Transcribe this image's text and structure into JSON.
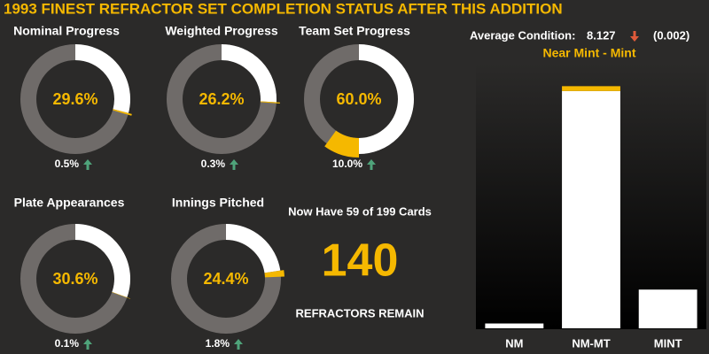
{
  "title": "1993 FINEST REFRACTOR SET COMPLETION STATUS AFTER THIS ADDITION",
  "cards_summary": "Now Have 59 of 199 Cards",
  "remaining": 140,
  "remaining_label": "REFRACTORS REMAIN",
  "chart_data": [
    {
      "type": "donut",
      "title": "Nominal Progress",
      "value": 29.6,
      "value_label": "29.6%",
      "change": 0.5,
      "change_label": "0.5%",
      "color": "#ffffff",
      "change_color": "#f5b800",
      "track_color": "#6f6b69"
    },
    {
      "type": "donut",
      "title": "Weighted Progress",
      "value": 26.2,
      "value_label": "26.2%",
      "change": 0.3,
      "change_label": "0.3%",
      "color": "#ffffff",
      "change_color": "#f5b800",
      "track_color": "#6f6b69"
    },
    {
      "type": "donut",
      "title": "Team Set Progress",
      "value": 60.0,
      "value_label": "60.0%",
      "change": 10.0,
      "change_label": "10.0%",
      "color": "#ffffff",
      "change_color": "#f5b800",
      "track_color": "#6f6b69"
    },
    {
      "type": "donut",
      "title": "Plate Appearances",
      "value": 30.6,
      "value_label": "30.6%",
      "change": 0.1,
      "change_label": "0.1%",
      "color": "#ffffff",
      "change_color": "#f5b800",
      "track_color": "#6f6b69"
    },
    {
      "type": "donut",
      "title": "Innings Pitched",
      "value": 24.4,
      "value_label": "24.4%",
      "change": 1.8,
      "change_label": "1.8%",
      "color": "#ffffff",
      "change_color": "#f5b800",
      "track_color": "#6f6b69"
    },
    {
      "type": "bar",
      "stat_label": "Average Condition:",
      "stat": 8.127,
      "stat_change": -0.002,
      "stat_change_label": "(0.002)",
      "subtitle": "Near Mint - Mint",
      "categories": [
        "NM",
        "NM-MT",
        "MINT"
      ],
      "stacked": true,
      "series": [
        {
          "color": "#ffffff",
          "values": [
            1,
            49,
            8
          ]
        },
        {
          "color": "#f5b800",
          "values": [
            0,
            1,
            0
          ]
        }
      ],
      "ylim": [
        0,
        55
      ]
    }
  ]
}
